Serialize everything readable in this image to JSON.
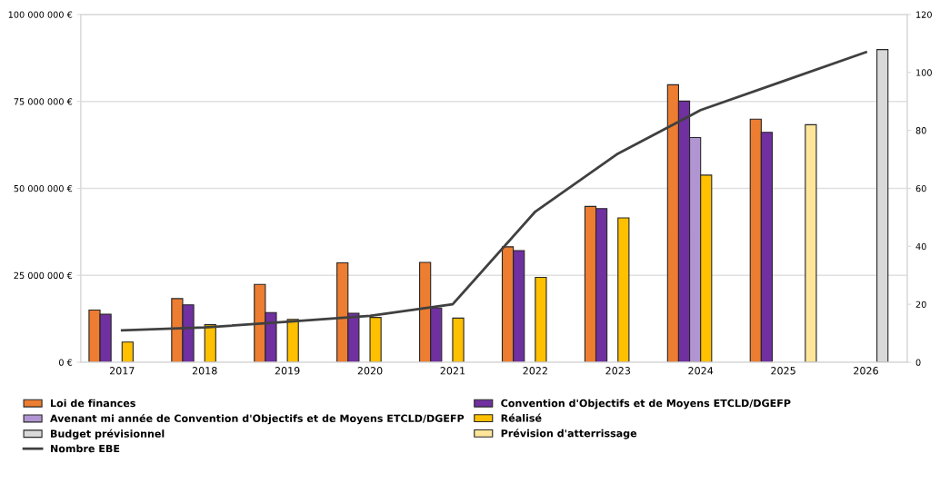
{
  "chart_data": {
    "type": "bar",
    "categories": [
      "2017",
      "2018",
      "2019",
      "2020",
      "2021",
      "2022",
      "2023",
      "2024",
      "2025",
      "2026"
    ],
    "series": [
      {
        "name": "Loi de finances",
        "color": "#ed7d31",
        "values": [
          15000000.0,
          18300000.0,
          22400000.0,
          28600000.0,
          28700000.0,
          33200000.0,
          44800000.0,
          79800000.0,
          69900000.0,
          null
        ]
      },
      {
        "name": "Convention d'Objectifs et de Moyens ETCLD/DGEFP",
        "color": "#7030a0",
        "values": [
          13800000.0,
          16500000.0,
          14300000.0,
          14100000.0,
          15600000.0,
          32100000.0,
          44200000.0,
          75100000.0,
          66100000.0,
          null
        ]
      },
      {
        "name": "Avenant mi année de Convention d'Objectifs et de Moyens ETCLD/DGEFP",
        "color": "#b195d2",
        "values": [
          null,
          null,
          null,
          null,
          null,
          null,
          null,
          64600000.0,
          null,
          null
        ]
      },
      {
        "name": "Réalisé",
        "color": "#ffc000",
        "values": [
          5800000.0,
          10800000.0,
          12300000.0,
          12900000.0,
          12700000.0,
          24400000.0,
          41500000.0,
          53800000.0,
          null,
          null
        ]
      },
      {
        "name": "Budget prévisionnel",
        "color": "#d9d9d9",
        "values": [
          null,
          null,
          null,
          null,
          null,
          null,
          null,
          null,
          null,
          89900000.0
        ]
      },
      {
        "name": "Prévision d'atterrissage",
        "color": "#ffe699",
        "values": [
          null,
          null,
          null,
          null,
          null,
          null,
          null,
          null,
          68300000.0,
          null
        ]
      },
      {
        "name": "Nombre EBE",
        "type": "line",
        "axis": "y2",
        "color": "#404040",
        "values": [
          11,
          12,
          14,
          16,
          20,
          52,
          72,
          87,
          97,
          107
        ]
      }
    ],
    "ylim": [
      0,
      100000000
    ],
    "yticks": [
      {
        "value": 0,
        "label": "0 €"
      },
      {
        "value": 25000000,
        "label": "25 000 000 €"
      },
      {
        "value": 50000000,
        "label": "50 000 000 €"
      },
      {
        "value": 75000000,
        "label": "75 000 000 €"
      },
      {
        "value": 100000000,
        "label": "100 000 000 €"
      }
    ],
    "y2lim": [
      0,
      120
    ],
    "y2ticks": [
      0,
      20,
      40,
      60,
      80,
      100,
      120
    ],
    "grid": "y",
    "legend": "bottom",
    "marker": "none",
    "line_style": "solid"
  }
}
